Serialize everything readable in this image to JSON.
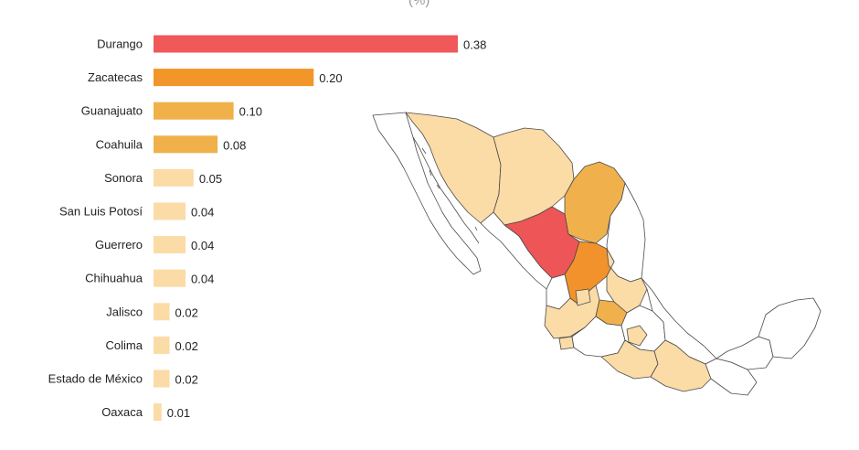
{
  "unit_label": "(%)",
  "chart_data": {
    "type": "bar",
    "orientation": "horizontal",
    "categories": [
      "Durango",
      "Zacatecas",
      "Guanajuato",
      "Coahuila",
      "Sonora",
      "San Luis Potosí",
      "Guerrero",
      "Chihuahua",
      "Jalisco",
      "Colima",
      "Estado de México",
      "Oaxaca"
    ],
    "values": [
      0.38,
      0.2,
      0.1,
      0.08,
      0.05,
      0.04,
      0.04,
      0.04,
      0.02,
      0.02,
      0.02,
      0.01
    ],
    "value_labels": [
      "0.38",
      "0.20",
      "0.10",
      "0.08",
      "0.05",
      "0.04",
      "0.04",
      "0.04",
      "0.02",
      "0.02",
      "0.02",
      "0.01"
    ],
    "colors": [
      "#f0585a",
      "#f2962a",
      "#f0b04a",
      "#f0b04a",
      "#fbdba6",
      "#fbdba6",
      "#fbdba6",
      "#fbdba6",
      "#fbdba6",
      "#fbdba6",
      "#fbdba6",
      "#fbdba6"
    ],
    "xlim": [
      0,
      0.38
    ],
    "grid": false
  },
  "map": {
    "type": "choropleth",
    "region": "Mexico",
    "colors": {
      "high": "#ee5557",
      "medium_high": "#f2922c",
      "medium": "#f0b14d",
      "low": "#fbdba6",
      "none": "#ffffff",
      "border": "#4a4a4a"
    }
  }
}
